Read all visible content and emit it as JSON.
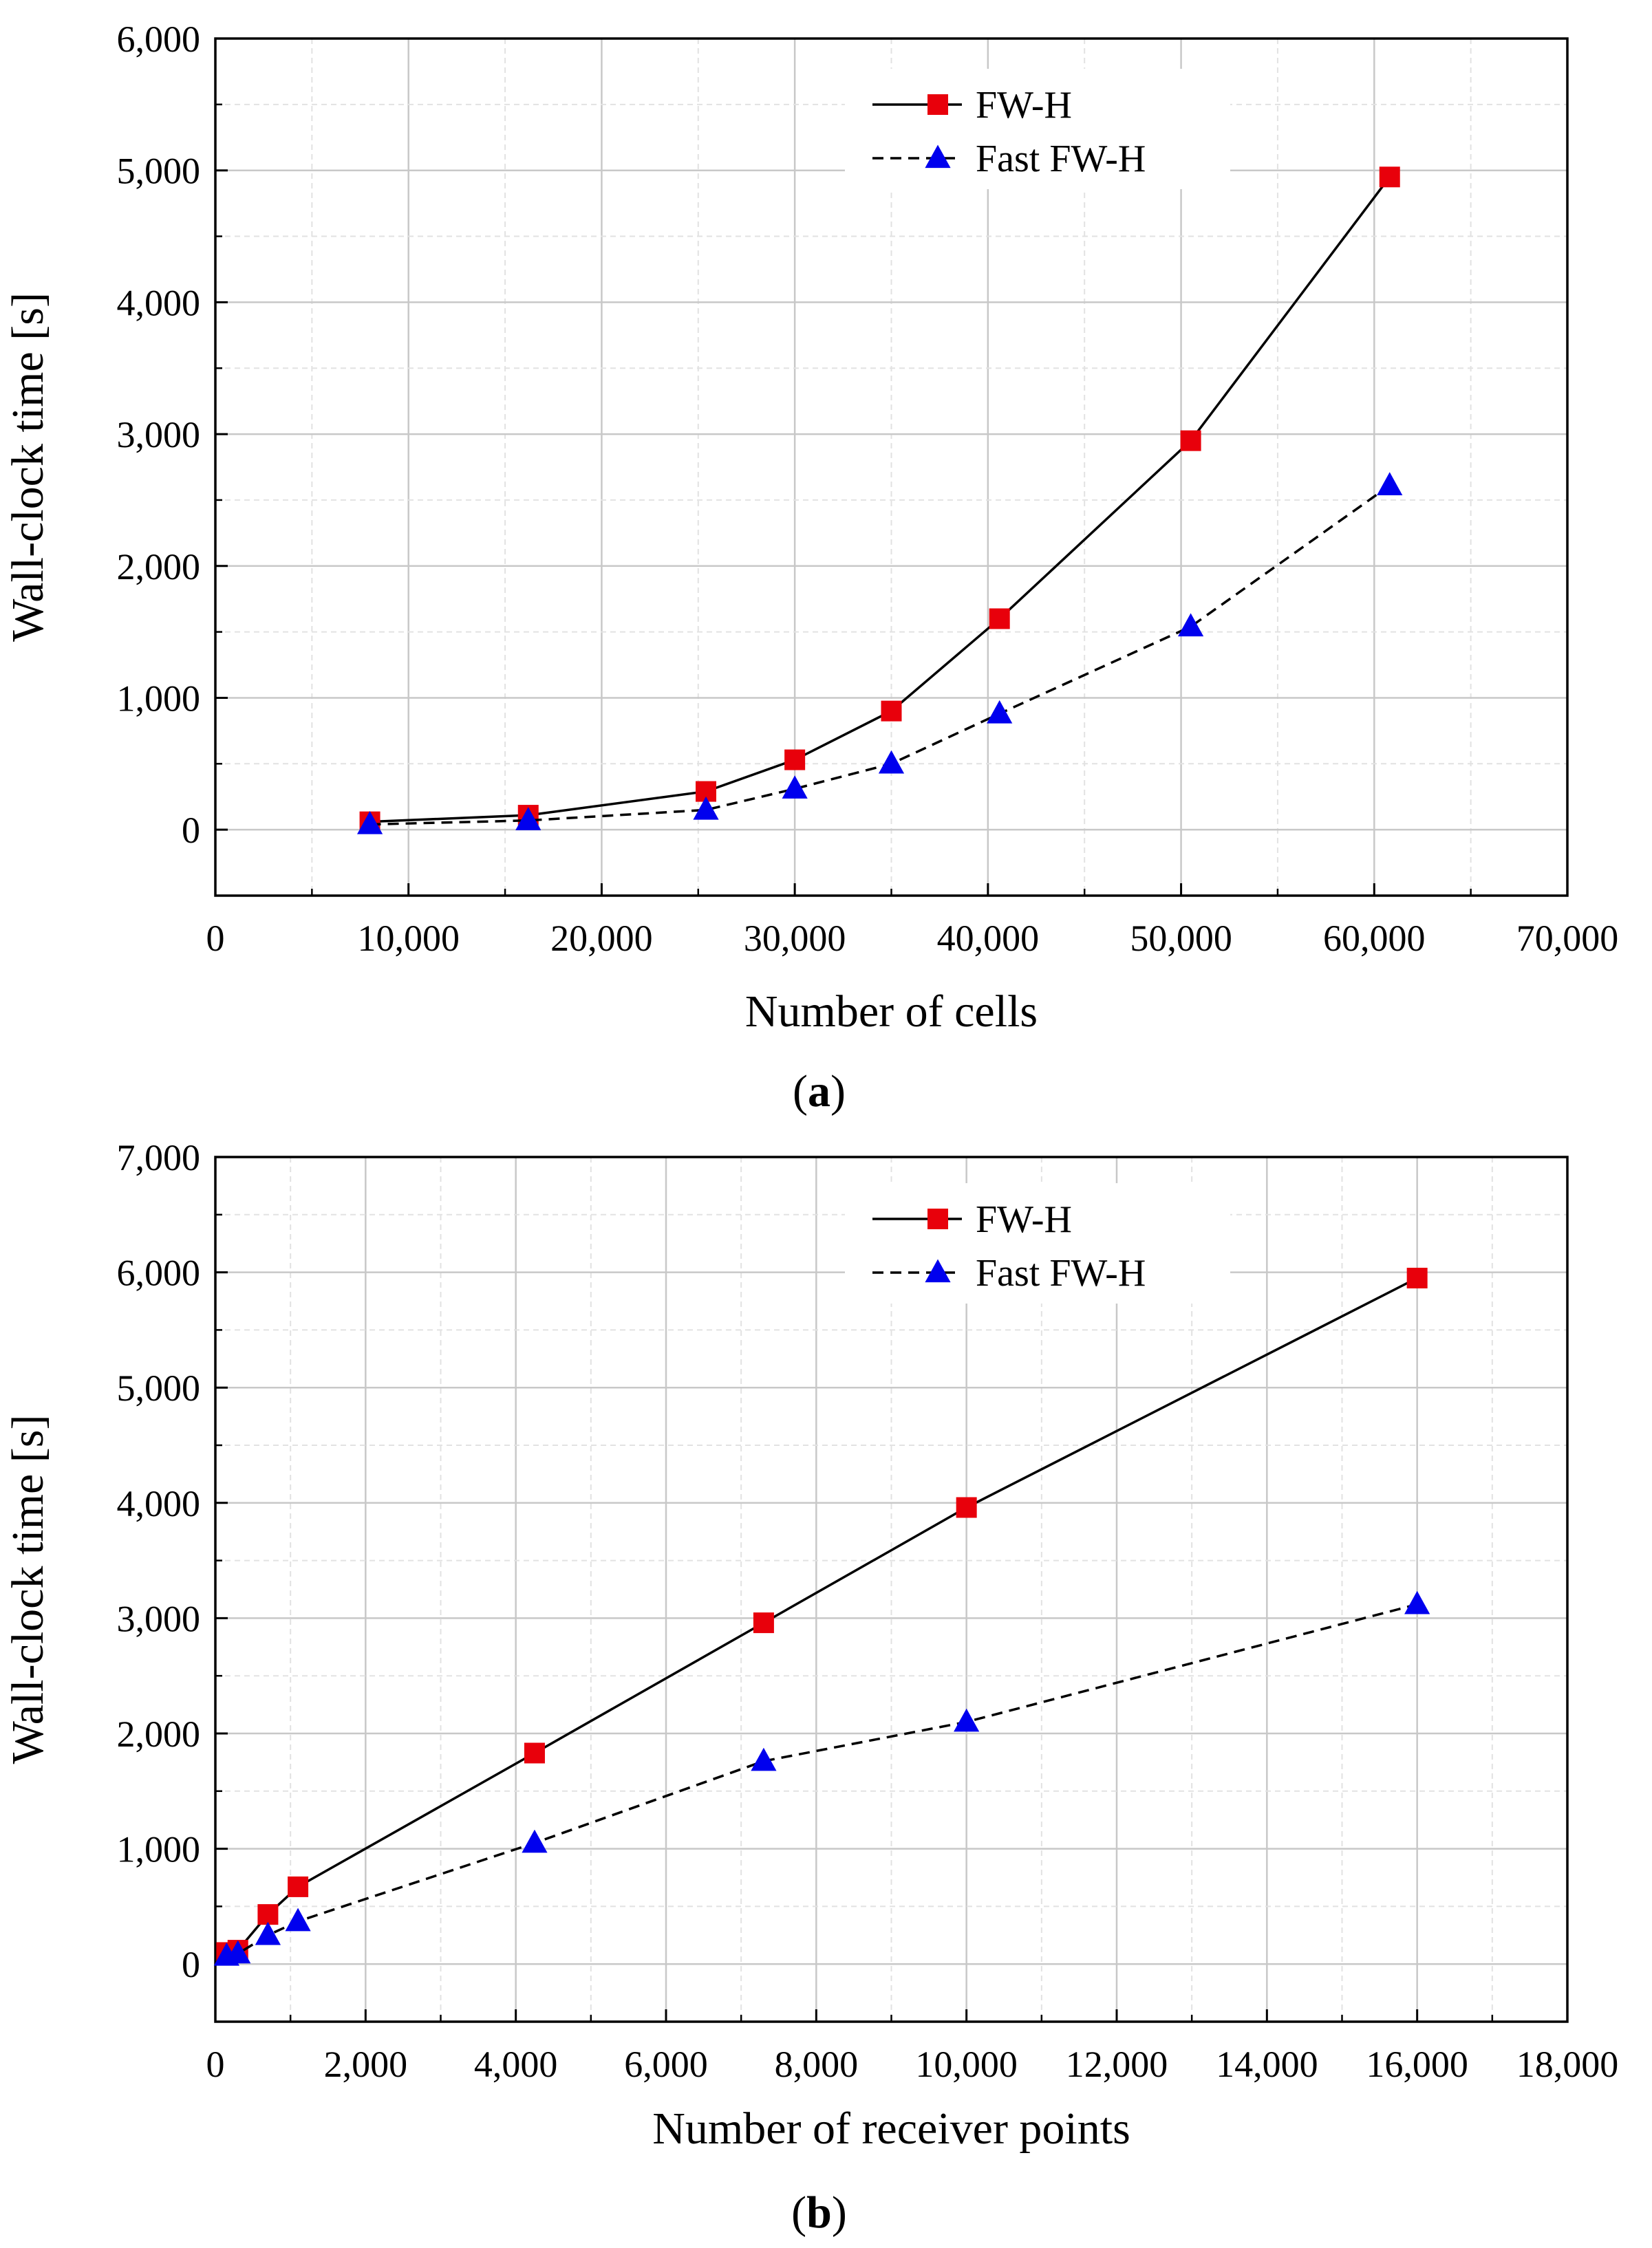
{
  "colors": {
    "fwh_marker": "#e8000b",
    "fast_marker": "#0000ee",
    "line": "#000000",
    "grid_major": "#c8c8c8",
    "grid_minor": "#e2e2e2"
  },
  "chart_data": [
    {
      "type": "line",
      "panel_label": {
        "open": "(",
        "letter": "a",
        "close": ")"
      },
      "xlabel": "Number of cells",
      "ylabel": "Wall-clock time [s]",
      "xlim": [
        0,
        70000
      ],
      "ylim": [
        -500,
        6000
      ],
      "xticks": [
        0,
        10000,
        20000,
        30000,
        40000,
        50000,
        60000,
        70000
      ],
      "xtick_labels": [
        "0",
        "10,000",
        "20,000",
        "30,000",
        "40,000",
        "50,000",
        "60,000",
        "70,000"
      ],
      "yticks": [
        0,
        1000,
        2000,
        3000,
        4000,
        5000,
        6000
      ],
      "ytick_labels": [
        "0",
        "1,000",
        "2,000",
        "3,000",
        "4,000",
        "5,000",
        "6,000"
      ],
      "grid": true,
      "legend": "top-right",
      "series": [
        {
          "name": "FW-H",
          "marker": "square",
          "linestyle": "solid",
          "x": [
            8000,
            16200,
            25400,
            30000,
            35000,
            40600,
            50500,
            60800
          ],
          "y": [
            60,
            110,
            290,
            530,
            900,
            1600,
            2950,
            4950
          ]
        },
        {
          "name": "Fast FW-H",
          "marker": "triangle",
          "linestyle": "dashed",
          "x": [
            8000,
            16200,
            25400,
            30000,
            35000,
            40600,
            50500,
            60800
          ],
          "y": [
            40,
            70,
            150,
            310,
            500,
            880,
            1540,
            2610
          ]
        }
      ]
    },
    {
      "type": "line",
      "panel_label": {
        "open": "(",
        "letter": "b",
        "close": ")"
      },
      "xlabel": "Number of receiver points",
      "ylabel": "Wall-clock time [s]",
      "xlim": [
        0,
        18000
      ],
      "ylim": [
        -500,
        7000
      ],
      "xticks": [
        0,
        2000,
        4000,
        6000,
        8000,
        10000,
        12000,
        14000,
        16000,
        18000
      ],
      "xtick_labels": [
        "0",
        "2,000",
        "4,000",
        "6,000",
        "8,000",
        "10,000",
        "12,000",
        "14,000",
        "16,000",
        "18,000"
      ],
      "yticks": [
        0,
        1000,
        2000,
        3000,
        4000,
        5000,
        6000,
        7000
      ],
      "ytick_labels": [
        "0",
        "1,000",
        "2,000",
        "3,000",
        "4,000",
        "5,000",
        "6,000",
        "7,000"
      ],
      "grid": true,
      "legend": "top-right",
      "series": [
        {
          "name": "FW-H",
          "marker": "square",
          "linestyle": "solid",
          "x": [
            150,
            300,
            700,
            1100,
            4250,
            7300,
            10000,
            16000
          ],
          "y": [
            100,
            120,
            430,
            670,
            1830,
            2960,
            3960,
            5950
          ]
        },
        {
          "name": "Fast FW-H",
          "marker": "triangle",
          "linestyle": "dashed",
          "x": [
            150,
            300,
            700,
            1100,
            4250,
            7300,
            10000,
            16000
          ],
          "y": [
            70,
            90,
            250,
            370,
            1050,
            1760,
            2100,
            3120
          ]
        }
      ]
    }
  ]
}
